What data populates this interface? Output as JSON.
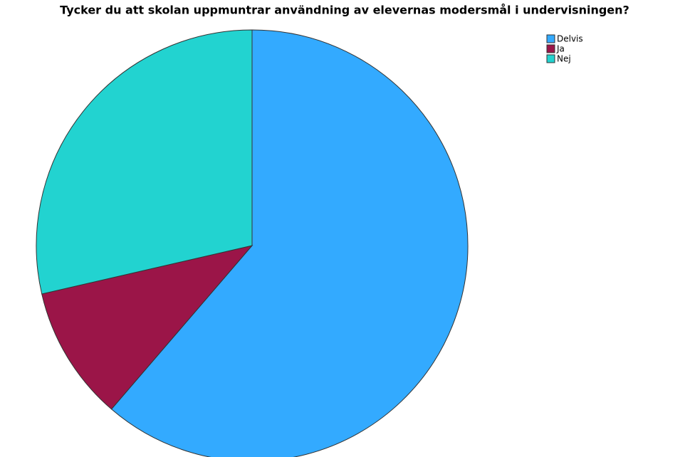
{
  "chart_data": {
    "type": "pie",
    "title": "Tycker du att skolan uppmuntrar användning av elevernas modersmål i undervisningen?",
    "categories": [
      "Delvis",
      "Ja",
      "Nej"
    ],
    "values": [
      61.3,
      10.1,
      28.6
    ],
    "colors": [
      "#33aaff",
      "#9b1548",
      "#22d3d0"
    ]
  }
}
